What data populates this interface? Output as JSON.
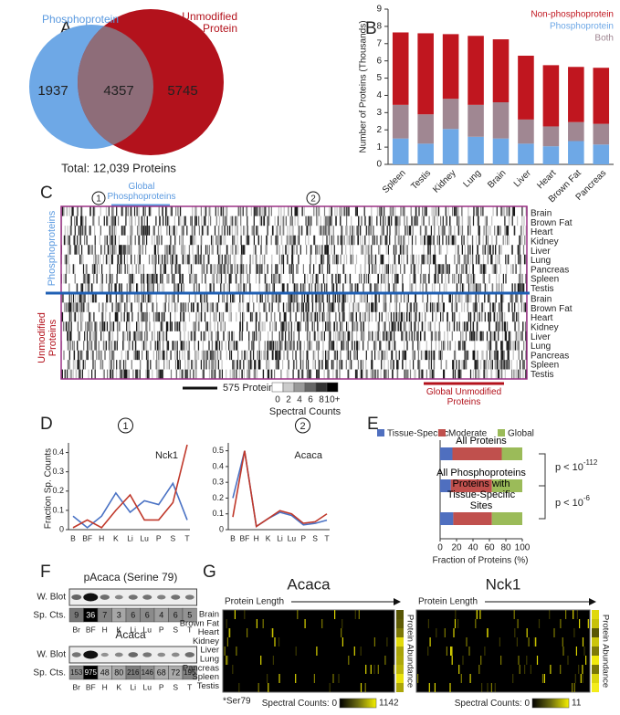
{
  "panel_a": {
    "label": "A",
    "left_label": "Phosphoprotein",
    "right_label": "Unmodified Protein",
    "left_only": 1937,
    "both": 4357,
    "right_only": 5745,
    "total": "Total: 12,039 Proteins"
  },
  "panel_b": {
    "label": "B",
    "chart_data": {
      "type": "bar",
      "ylabel": "Number of Proteins (Thousands)",
      "categories": [
        "Spleen",
        "Testis",
        "Kidney",
        "Lung",
        "Brain",
        "Liver",
        "Heart",
        "Brown Fat",
        "Pancreas"
      ],
      "series": [
        {
          "name": "Non-phosphoprotein",
          "color": "#c0161f",
          "values": [
            4.2,
            4.7,
            3.75,
            4.0,
            3.65,
            3.7,
            3.55,
            3.2,
            3.25
          ]
        },
        {
          "name": "Phosphoprotein",
          "color": "#6ea8e6",
          "values": [
            1.5,
            1.2,
            2.05,
            1.6,
            1.5,
            1.2,
            1.05,
            1.35,
            1.15
          ]
        },
        {
          "name": "Both",
          "color": "#a08792",
          "values": [
            1.95,
            1.7,
            1.75,
            1.85,
            2.1,
            1.4,
            1.15,
            1.1,
            1.2
          ]
        }
      ],
      "ylim": [
        0,
        9
      ],
      "yticks": [
        0,
        1,
        2,
        3,
        4,
        5,
        6,
        7,
        8,
        9
      ],
      "stacked": true
    }
  },
  "panel_c": {
    "label": "C",
    "marker_1": "1",
    "marker_2": "2",
    "global_phospho": "Global Phosphoproteins",
    "group_top": "Phosphoproteins",
    "group_bottom": "Unmodified Proteins",
    "tissues": [
      "Brain",
      "Brown Fat",
      "Heart",
      "Kidney",
      "Liver",
      "Lung",
      "Pancreas",
      "Spleen",
      "Testis"
    ],
    "scale_bar": "575 Proteins",
    "colorbar_label": "Spectral Counts",
    "colorbar_ticks": [
      0,
      2,
      4,
      6,
      8,
      {
        "value": 10,
        "label": "10+"
      }
    ],
    "global_unmodified": "Global Unmodified Proteins"
  },
  "panel_d": {
    "label": "D",
    "ylabel": "Fraction Sp. Counts",
    "charts": [
      {
        "type": "line",
        "marker": "1",
        "title": "Nck1",
        "categories": [
          "B",
          "BF",
          "H",
          "K",
          "Li",
          "Lu",
          "P",
          "S",
          "T"
        ],
        "series": [
          {
            "color": "#4a72c4",
            "values": [
              0.07,
              0.01,
              0.07,
              0.19,
              0.09,
              0.15,
              0.13,
              0.24,
              0.05
            ]
          },
          {
            "color": "#c0392b",
            "values": [
              0.01,
              0.05,
              0.01,
              0.1,
              0.18,
              0.05,
              0.05,
              0.14,
              0.44
            ]
          }
        ],
        "ylim": [
          0,
          0.45
        ],
        "yticks": [
          0,
          0.1,
          0.2,
          0.3,
          0.4
        ]
      },
      {
        "type": "line",
        "marker": "2",
        "title": "Acaca",
        "categories": [
          "B",
          "BF",
          "H",
          "K",
          "Li",
          "Lu",
          "P",
          "S",
          "T"
        ],
        "series": [
          {
            "color": "#4a72c4",
            "values": [
              0.2,
              0.5,
              0.02,
              0.07,
              0.11,
              0.09,
              0.03,
              0.04,
              0.06
            ]
          },
          {
            "color": "#c0392b",
            "values": [
              0.08,
              0.5,
              0.02,
              0.07,
              0.12,
              0.1,
              0.04,
              0.05,
              0.1
            ]
          }
        ],
        "ylim": [
          0,
          0.55
        ],
        "yticks": [
          0,
          0.1,
          0.2,
          0.3,
          0.4,
          0.5
        ]
      }
    ]
  },
  "panel_e": {
    "label": "E",
    "chart_data": {
      "type": "hbar",
      "xlabel": "Fraction of Proteins (%)",
      "categories": [
        "All Proteins",
        "All Phosphoproteins",
        "Proteins with Tissue-Specific Sites"
      ],
      "series": [
        {
          "name": "Tissue-Specific",
          "color": "#4f6fbf",
          "values": [
            15,
            13,
            16
          ]
        },
        {
          "name": "Moderate",
          "color": "#c0504d",
          "values": [
            60,
            50,
            47
          ]
        },
        {
          "name": "Global",
          "color": "#9bbb59",
          "values": [
            25,
            37,
            37
          ]
        }
      ],
      "xlim": [
        0,
        100
      ],
      "xticks": [
        0,
        20,
        40,
        60,
        80,
        100
      ],
      "stacked": true
    },
    "pvalues": [
      {
        "text": "p < 10",
        "exponent": "-112"
      },
      {
        "text": "p < 10",
        "exponent": "-6"
      }
    ]
  },
  "panel_f": {
    "label": "F",
    "lanes": [
      "Br",
      "BF",
      "H",
      "K",
      "Li",
      "Lu",
      "P",
      "S",
      "T"
    ],
    "row_blot": "W. Blot",
    "row_counts": "Sp. Cts.",
    "blots": [
      {
        "title": "pAcaca (Serine 79)",
        "counts": [
          9,
          36,
          7,
          3,
          6,
          6,
          4,
          6,
          5
        ]
      },
      {
        "title": "Acaca",
        "counts": [
          153,
          975,
          48,
          80,
          216,
          146,
          68,
          72,
          195
        ]
      }
    ]
  },
  "panel_g": {
    "label": "G",
    "length_label": "Protein Length",
    "abundance_label": "Protein Abundance",
    "tissues": [
      "Brain",
      "Brown Fat",
      "Heart",
      "Kidney",
      "Liver",
      "Lung",
      "Pancreas",
      "Spleen",
      "Testis"
    ],
    "site_note": "*Ser79",
    "colorbar_label": "Spectral Counts: ",
    "maps": [
      {
        "title": "Acaca",
        "min": 0,
        "max": 1142
      },
      {
        "title": "Nck1",
        "min": 0,
        "max": 11
      }
    ]
  }
}
